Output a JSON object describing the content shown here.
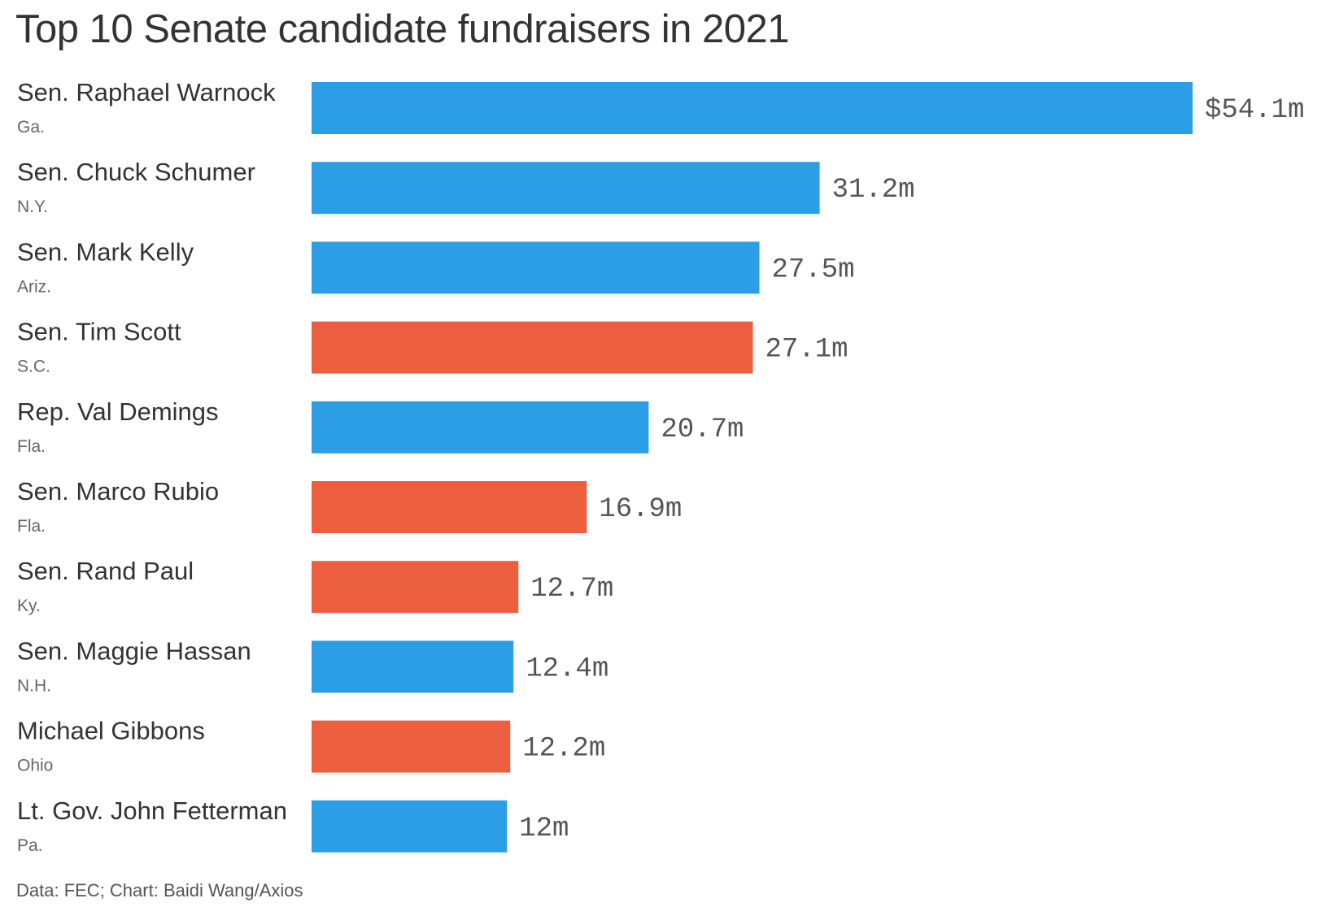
{
  "chart_data": {
    "type": "bar",
    "orientation": "horizontal",
    "title": "Top 10 Senate candidate fundraisers in 2021",
    "source": "Data: FEC; Chart: Baidi Wang/Axios",
    "categories": [
      "Sen. Raphael Warnock",
      "Sen. Chuck Schumer",
      "Sen. Mark Kelly",
      "Sen. Tim Scott",
      "Rep. Val Demings",
      "Sen. Marco Rubio",
      "Sen. Rand Paul",
      "Sen. Maggie Hassan",
      "Michael Gibbons",
      "Lt. Gov. John Fetterman"
    ],
    "states": [
      "Ga.",
      "N.Y.",
      "Ariz.",
      "S.C.",
      "Fla.",
      "Fla.",
      "Ky.",
      "N.H.",
      "Ohio",
      "Pa."
    ],
    "values": [
      54.1,
      31.2,
      27.5,
      27.1,
      20.7,
      16.9,
      12.7,
      12.4,
      12.2,
      12
    ],
    "value_labels": [
      "$54.1m",
      "31.2m",
      "27.5m",
      "27.1m",
      "20.7m",
      "16.9m",
      "12.7m",
      "12.4m",
      "12.2m",
      "12m"
    ],
    "party": [
      "D",
      "D",
      "D",
      "R",
      "D",
      "R",
      "R",
      "D",
      "R",
      "D"
    ],
    "colors": {
      "D": "#2c9ee6",
      "R": "#eb5e3f"
    },
    "xlim": [
      0,
      54.1
    ],
    "grid": false,
    "legend": "none"
  }
}
